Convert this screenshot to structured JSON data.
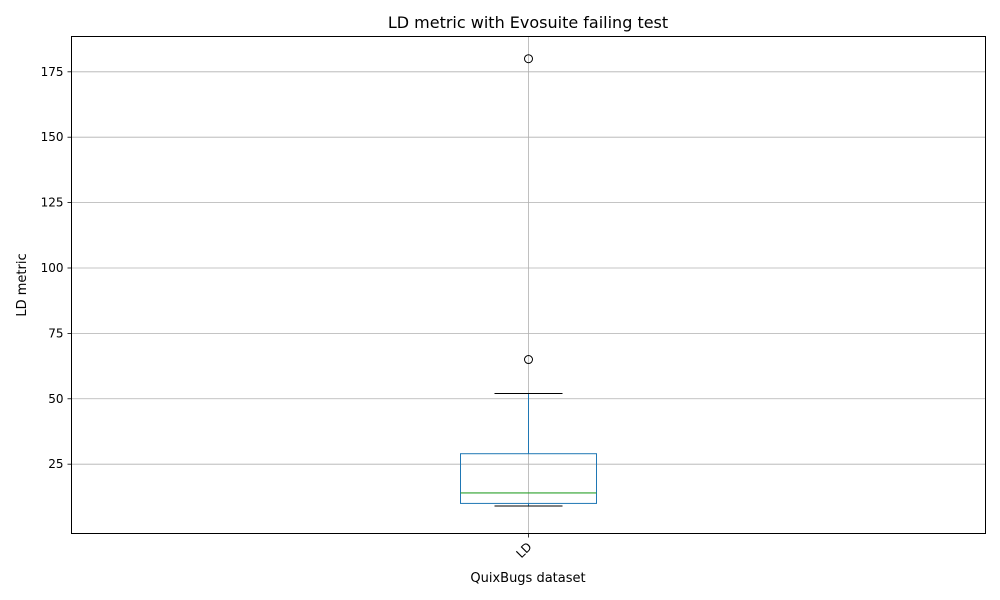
{
  "chart_data": {
    "type": "box",
    "title": "LD metric with Evosuite failing test",
    "xlabel": "QuixBugs dataset",
    "ylabel": "LD metric",
    "categories": [
      "LD"
    ],
    "ylim": [
      -1.5,
      188.5
    ],
    "yticks": [
      25,
      50,
      75,
      100,
      125,
      150,
      175
    ],
    "grid": true,
    "boxes": [
      {
        "category": "LD",
        "whisker_low": 9,
        "q1": 10,
        "median": 14,
        "q3": 29,
        "whisker_high": 52,
        "outliers": [
          65,
          180
        ]
      }
    ],
    "colors": {
      "box": "#1f77b4",
      "median": "#2ca02c",
      "whisker": "#1f77b4",
      "cap": "#000000",
      "outlier": "#000000",
      "grid": "#b0b0b0"
    }
  }
}
